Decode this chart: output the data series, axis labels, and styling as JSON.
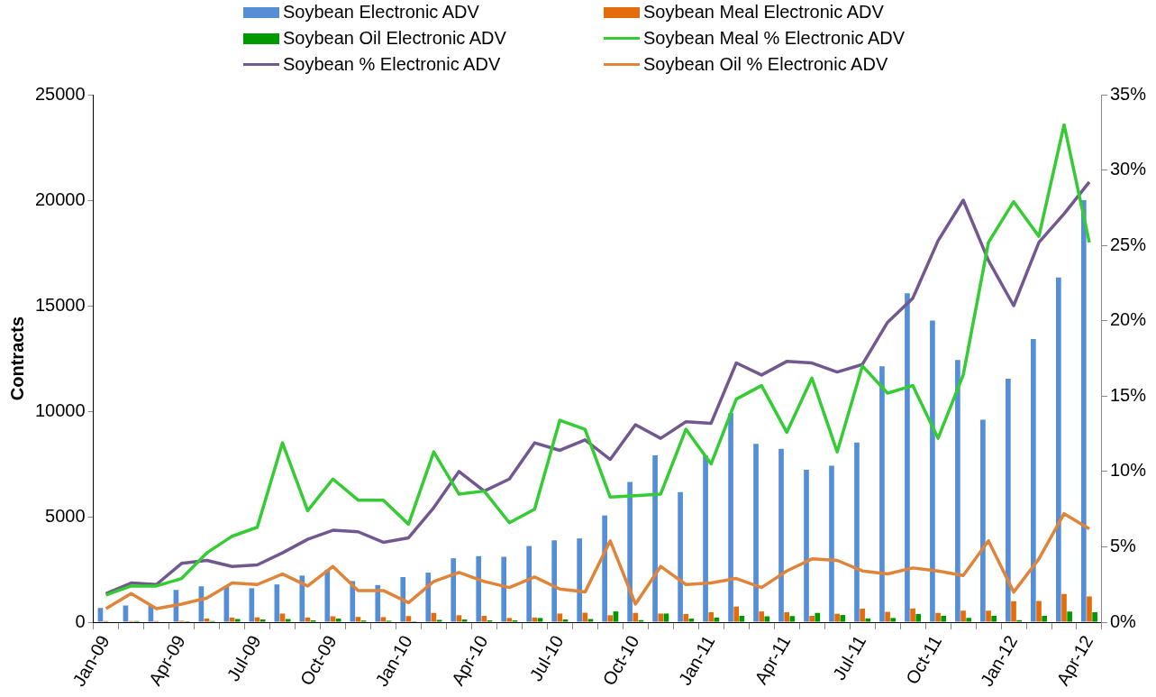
{
  "chart_data": {
    "type": "bar",
    "ylabel": "Contracts",
    "categories": [
      "Jan-09",
      null,
      null,
      "Apr-09",
      null,
      null,
      "Jul-09",
      null,
      null,
      "Oct-09",
      null,
      null,
      "Jan-10",
      null,
      null,
      "Apr-10",
      null,
      null,
      "Jul-10",
      null,
      null,
      "Oct-10",
      null,
      null,
      "Jan-11",
      null,
      null,
      "Apr-11",
      null,
      null,
      "Jul-11",
      null,
      null,
      "Oct-11",
      null,
      null,
      "Jan-12",
      null,
      null,
      "Apr-12"
    ],
    "series": [
      {
        "name": "Soybean Electronic ADV",
        "color": "#558ed5",
        "values": [
          670,
          790,
          770,
          1530,
          1700,
          1690,
          1610,
          1790,
          2210,
          2490,
          1950,
          1760,
          2140,
          2350,
          3030,
          3130,
          3100,
          3610,
          3880,
          3970,
          5060,
          6650,
          7910,
          6170,
          7900,
          9900,
          8450,
          8220,
          7220,
          7420,
          8520,
          12130,
          15590,
          14300,
          12430,
          9600,
          11540,
          13420,
          16340,
          20000
        ]
      },
      {
        "name": "Soybean Meal Electronic ADV",
        "color": "#e46c0a",
        "values": [
          60,
          60,
          60,
          70,
          170,
          220,
          230,
          410,
          220,
          280,
          250,
          240,
          290,
          440,
          330,
          300,
          200,
          220,
          410,
          450,
          330,
          440,
          410,
          390,
          470,
          740,
          510,
          470,
          300,
          400,
          640,
          490,
          650,
          440,
          550,
          550,
          990,
          1010,
          1340,
          1220
        ]
      },
      {
        "name": "Soybean Oil Electronic ADV",
        "color": "#009900",
        "values": [
          20,
          60,
          20,
          40,
          60,
          150,
          130,
          150,
          90,
          170,
          80,
          70,
          40,
          110,
          130,
          90,
          90,
          200,
          130,
          150,
          510,
          100,
          410,
          170,
          220,
          300,
          280,
          290,
          440,
          340,
          180,
          200,
          390,
          300,
          200,
          300,
          100,
          300,
          500,
          470
        ]
      },
      {
        "name": "Soybean Meal % Electronic ADV",
        "type": "line",
        "axis": "y2",
        "color": "#33cc33",
        "values": [
          1.8,
          2.4,
          2.4,
          2.9,
          4.6,
          5.7,
          6.3,
          11.9,
          7.4,
          9.5,
          8.1,
          8.1,
          6.5,
          11.3,
          8.5,
          8.7,
          6.6,
          7.5,
          13.4,
          12.8,
          8.3,
          8.4,
          8.5,
          12.8,
          10.5,
          14.8,
          15.7,
          12.6,
          16.2,
          11.3,
          17.0,
          15.2,
          15.7,
          12.2,
          16.4,
          25.2,
          27.9,
          25.6,
          33.0,
          25.2
        ]
      },
      {
        "name": "Soybean % Electronic ADV",
        "type": "line",
        "axis": "y2",
        "color": "#71588f",
        "values": [
          1.9,
          2.6,
          2.5,
          3.9,
          4.1,
          3.7,
          3.8,
          4.6,
          5.5,
          6.1,
          6.0,
          5.3,
          5.6,
          7.6,
          10.0,
          8.7,
          9.5,
          11.9,
          11.4,
          12.1,
          10.8,
          13.1,
          12.2,
          13.3,
          13.2,
          17.2,
          16.4,
          17.3,
          17.2,
          16.6,
          17.1,
          19.9,
          21.5,
          25.3,
          28.0,
          24.0,
          21.0,
          25.2,
          27.1,
          29.2
        ]
      },
      {
        "name": "Soybean Oil % Electronic ADV",
        "type": "line",
        "axis": "y2",
        "color": "#e0843a",
        "values": [
          0.9,
          1.9,
          0.9,
          1.2,
          1.6,
          2.6,
          2.5,
          3.2,
          2.4,
          3.7,
          2.1,
          2.1,
          1.3,
          2.7,
          3.3,
          2.7,
          2.3,
          3.0,
          2.2,
          2.0,
          5.4,
          1.2,
          3.7,
          2.5,
          2.6,
          2.9,
          2.3,
          3.4,
          4.2,
          4.1,
          3.4,
          3.2,
          3.6,
          3.4,
          3.1,
          5.4,
          2.0,
          4.2,
          7.2,
          6.2
        ]
      }
    ],
    "ylim": [
      0,
      25000
    ],
    "yticks": [
      0,
      5000,
      10000,
      15000,
      20000,
      25000
    ],
    "y2lim": [
      0,
      35
    ],
    "y2ticks": [
      {
        "value": 0,
        "label": "0%"
      },
      {
        "value": 5,
        "label": "5%"
      },
      {
        "value": 10,
        "label": "10%"
      },
      {
        "value": 15,
        "label": "15%"
      },
      {
        "value": 20,
        "label": "20%"
      },
      {
        "value": 25,
        "label": "25%"
      },
      {
        "value": 30,
        "label": "30%"
      },
      {
        "value": 35,
        "label": "35%"
      }
    ],
    "grid": false,
    "legend": "top"
  }
}
